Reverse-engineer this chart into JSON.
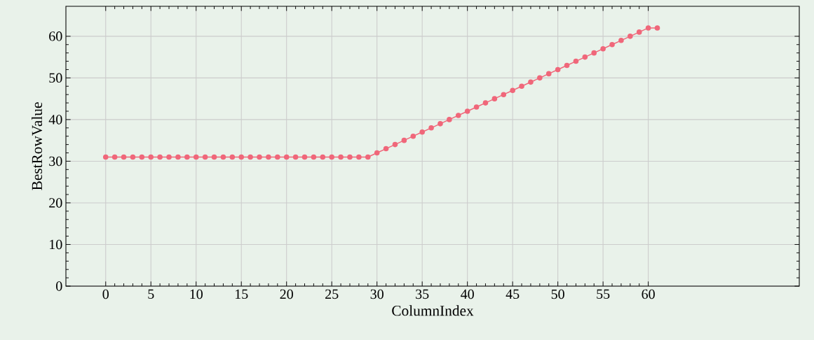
{
  "chart_data": {
    "type": "line",
    "xlabel": "ColumnIndex",
    "ylabel": "BestRowValue",
    "x": [
      0,
      1,
      2,
      3,
      4,
      5,
      6,
      7,
      8,
      9,
      10,
      11,
      12,
      13,
      14,
      15,
      16,
      17,
      18,
      19,
      20,
      21,
      22,
      23,
      24,
      25,
      26,
      27,
      28,
      29,
      30,
      31,
      32,
      33,
      34,
      35,
      36,
      37,
      38,
      39,
      40,
      41,
      42,
      43,
      44,
      45,
      46,
      47,
      48,
      49,
      50,
      51,
      52,
      53,
      54,
      55,
      56,
      57,
      58,
      59,
      60,
      61
    ],
    "values": [
      31,
      31,
      31,
      31,
      31,
      31,
      31,
      31,
      31,
      31,
      31,
      31,
      31,
      31,
      31,
      31,
      31,
      31,
      31,
      31,
      31,
      31,
      31,
      31,
      31,
      31,
      31,
      31,
      31,
      31,
      32,
      33,
      34,
      35,
      36,
      37,
      38,
      39,
      40,
      41,
      42,
      43,
      44,
      45,
      46,
      47,
      48,
      49,
      50,
      51,
      52,
      53,
      54,
      55,
      56,
      57,
      58,
      59,
      60,
      61,
      62,
      62
    ],
    "color": "#f0677a",
    "marker": "circle",
    "line_style": "solid",
    "grid": true,
    "xlim": [
      -4.4,
      76.7
    ],
    "ylim": [
      0,
      67.2
    ],
    "xticks": [
      0,
      5,
      10,
      15,
      20,
      25,
      30,
      35,
      40,
      45,
      50,
      55,
      60
    ],
    "yticks": [
      0,
      10,
      20,
      30,
      40,
      50,
      60
    ]
  }
}
